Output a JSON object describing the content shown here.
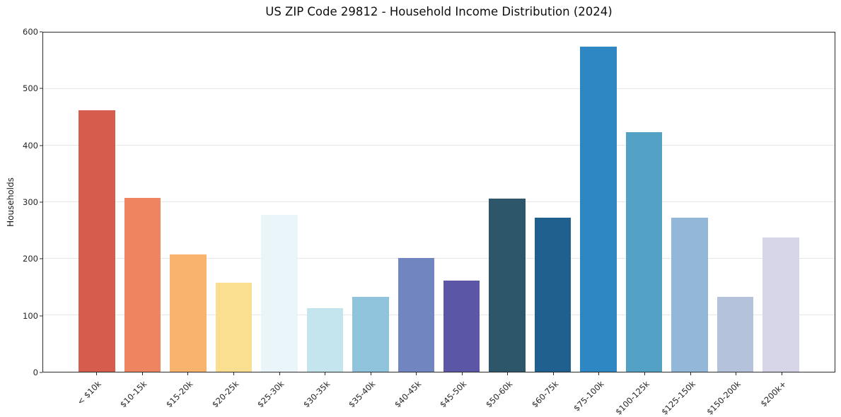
{
  "chart_data": {
    "type": "bar",
    "title": "US ZIP Code 29812 - Household Income Distribution (2024)",
    "xlabel": "",
    "ylabel": "Households",
    "ylim": [
      0,
      600
    ],
    "yticks": [
      0,
      100,
      200,
      300,
      400,
      500,
      600
    ],
    "categories": [
      "< $10k",
      "$10-15k",
      "$15-20k",
      "$20-25k",
      "$25-30k",
      "$30-35k",
      "$35-40k",
      "$40-45k",
      "$45-50k",
      "$50-60k",
      "$60-75k",
      "$75-100k",
      "$100-125k",
      "$125-150k",
      "$150-200k",
      "$200k+"
    ],
    "values": [
      462,
      308,
      207,
      157,
      277,
      113,
      133,
      201,
      161,
      306,
      272,
      575,
      424,
      272,
      133,
      238
    ],
    "bar_colors": [
      "#d65d4e",
      "#ef8560",
      "#f8b46e",
      "#fbdf90",
      "#e9f5f8",
      "#c5e5ee",
      "#90c3dc",
      "#7186c1",
      "#5b56a6",
      "#2e566b",
      "#1f608f",
      "#2e87c2",
      "#54a1c6",
      "#93b7d8",
      "#b4c2dc",
      "#d6d6e8"
    ],
    "grid": "horizontal",
    "gridline_color": "#e7e7e7",
    "spine_color": "#2b2b2b",
    "background": "#ffffff",
    "legend": "none",
    "bar_width_fraction": 0.8
  }
}
